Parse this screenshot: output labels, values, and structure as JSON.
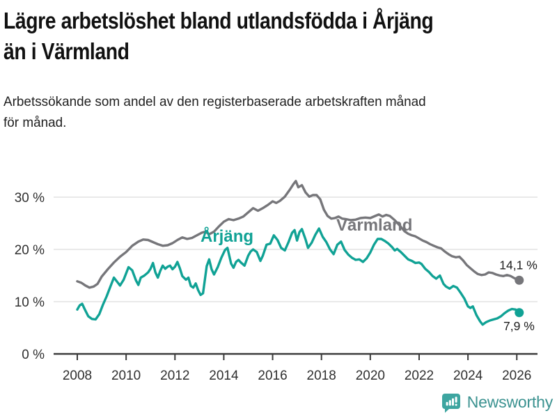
{
  "header": {
    "title": "Lägre arbetslöshet bland utlandsfödda i Årjäng än i Värmland",
    "title_lines": [
      "Lägre arbetslöshet bland utlandsfödda i Årjäng",
      "än i Värmland"
    ],
    "subtitle": "Arbetssökande som andel av den registerbaserade arbetskraften månad för månad.",
    "subtitle_lines": [
      "Arbetssökande som andel av den registerbaserade arbetskraften månad",
      "för månad."
    ]
  },
  "footer": {
    "brand": "Newsworthy",
    "brand_icon": "speech-bubble-bar-chart-icon",
    "brand_color": "#3da5a0"
  },
  "colors": {
    "background": "#ffffff",
    "title_text": "#111111",
    "axis_text": "#2f2f2f",
    "gridline": "#e2e2e2",
    "axis_line": "#3a3a3a",
    "varmland_line": "#76767a",
    "arjang_line": "#10a295"
  },
  "chart_data": {
    "type": "line",
    "title": "Lägre arbetslöshet bland utlandsfödda i Årjäng än i Värmland",
    "subtitle": "Arbetssökande som andel av den registerbaserade arbetskraften månad för månad.",
    "xlabel": "",
    "ylabel": "",
    "grid": "horizontal",
    "legend_position": "inline-labels",
    "x_axis": {
      "ticks": [
        2008,
        2010,
        2012,
        2014,
        2016,
        2018,
        2020,
        2022,
        2024,
        2026
      ],
      "tick_labels": [
        "2008",
        "2010",
        "2012",
        "2014",
        "2016",
        "2018",
        "2020",
        "2022",
        "2024",
        "2026"
      ],
      "range": [
        2007.0,
        2026.8
      ]
    },
    "y_axis": {
      "ticks": [
        0,
        10,
        20,
        30
      ],
      "tick_labels": [
        "0 %",
        "10 %",
        "20 %",
        "30 %"
      ],
      "range": [
        0,
        35
      ]
    },
    "series": [
      {
        "id": "varmland",
        "name": "Värmland",
        "color": "#76767a",
        "end_value": 14.1,
        "end_label": "14,1 %",
        "points": [
          [
            2008.0,
            13.9
          ],
          [
            2008.17,
            13.6
          ],
          [
            2008.33,
            13.1
          ],
          [
            2008.5,
            12.7
          ],
          [
            2008.67,
            12.9
          ],
          [
            2008.83,
            13.4
          ],
          [
            2009.0,
            14.8
          ],
          [
            2009.25,
            16.2
          ],
          [
            2009.5,
            17.5
          ],
          [
            2009.75,
            18.6
          ],
          [
            2010.0,
            19.5
          ],
          [
            2010.25,
            20.7
          ],
          [
            2010.5,
            21.5
          ],
          [
            2010.7,
            21.9
          ],
          [
            2010.9,
            21.8
          ],
          [
            2011.1,
            21.4
          ],
          [
            2011.3,
            21.0
          ],
          [
            2011.5,
            20.7
          ],
          [
            2011.7,
            20.8
          ],
          [
            2011.9,
            21.2
          ],
          [
            2012.1,
            21.8
          ],
          [
            2012.3,
            22.3
          ],
          [
            2012.5,
            22.0
          ],
          [
            2012.7,
            22.2
          ],
          [
            2012.9,
            22.7
          ],
          [
            2013.1,
            23.2
          ],
          [
            2013.25,
            23.4
          ],
          [
            2013.4,
            22.9
          ],
          [
            2013.6,
            23.4
          ],
          [
            2013.8,
            24.4
          ],
          [
            2014.0,
            25.3
          ],
          [
            2014.2,
            25.8
          ],
          [
            2014.4,
            25.6
          ],
          [
            2014.6,
            25.9
          ],
          [
            2014.8,
            26.3
          ],
          [
            2015.0,
            27.1
          ],
          [
            2015.2,
            27.9
          ],
          [
            2015.4,
            27.4
          ],
          [
            2015.6,
            27.9
          ],
          [
            2015.8,
            28.5
          ],
          [
            2016.0,
            29.2
          ],
          [
            2016.15,
            28.9
          ],
          [
            2016.3,
            29.3
          ],
          [
            2016.5,
            30.1
          ],
          [
            2016.7,
            31.4
          ],
          [
            2016.85,
            32.5
          ],
          [
            2016.95,
            33.1
          ],
          [
            2017.05,
            31.9
          ],
          [
            2017.2,
            32.3
          ],
          [
            2017.35,
            30.9
          ],
          [
            2017.5,
            30.1
          ],
          [
            2017.65,
            30.4
          ],
          [
            2017.8,
            30.4
          ],
          [
            2017.95,
            29.6
          ],
          [
            2018.1,
            27.6
          ],
          [
            2018.25,
            26.4
          ],
          [
            2018.4,
            25.9
          ],
          [
            2018.55,
            26.0
          ],
          [
            2018.7,
            26.3
          ],
          [
            2018.85,
            25.9
          ],
          [
            2019.0,
            25.8
          ],
          [
            2019.2,
            25.6
          ],
          [
            2019.4,
            25.7
          ],
          [
            2019.6,
            26.0
          ],
          [
            2019.8,
            26.1
          ],
          [
            2020.0,
            26.0
          ],
          [
            2020.2,
            26.4
          ],
          [
            2020.35,
            26.7
          ],
          [
            2020.5,
            26.3
          ],
          [
            2020.65,
            26.6
          ],
          [
            2020.8,
            26.4
          ],
          [
            2021.0,
            25.6
          ],
          [
            2021.2,
            24.6
          ],
          [
            2021.4,
            23.5
          ],
          [
            2021.55,
            23.0
          ],
          [
            2021.7,
            22.7
          ],
          [
            2021.85,
            22.5
          ],
          [
            2022.0,
            22.1
          ],
          [
            2022.15,
            21.7
          ],
          [
            2022.3,
            21.4
          ],
          [
            2022.45,
            21.0
          ],
          [
            2022.6,
            20.7
          ],
          [
            2022.75,
            20.4
          ],
          [
            2022.9,
            20.2
          ],
          [
            2023.05,
            19.6
          ],
          [
            2023.2,
            19.1
          ],
          [
            2023.35,
            18.7
          ],
          [
            2023.5,
            18.5
          ],
          [
            2023.65,
            18.6
          ],
          [
            2023.8,
            17.9
          ],
          [
            2023.95,
            17.0
          ],
          [
            2024.1,
            16.4
          ],
          [
            2024.25,
            15.8
          ],
          [
            2024.4,
            15.3
          ],
          [
            2024.55,
            15.1
          ],
          [
            2024.7,
            15.2
          ],
          [
            2024.85,
            15.6
          ],
          [
            2025.0,
            15.5
          ],
          [
            2025.15,
            15.2
          ],
          [
            2025.3,
            15.0
          ],
          [
            2025.45,
            14.9
          ],
          [
            2025.6,
            15.1
          ],
          [
            2025.75,
            14.9
          ],
          [
            2025.9,
            14.5
          ],
          [
            2026.1,
            14.1
          ]
        ]
      },
      {
        "id": "arjang",
        "name": "Årjäng",
        "color": "#10a295",
        "end_value": 7.9,
        "end_label": "7,9 %",
        "points": [
          [
            2008.0,
            8.5
          ],
          [
            2008.1,
            9.3
          ],
          [
            2008.2,
            9.6
          ],
          [
            2008.3,
            8.6
          ],
          [
            2008.45,
            7.2
          ],
          [
            2008.6,
            6.7
          ],
          [
            2008.75,
            6.6
          ],
          [
            2008.9,
            7.6
          ],
          [
            2009.05,
            9.4
          ],
          [
            2009.2,
            11.0
          ],
          [
            2009.35,
            12.8
          ],
          [
            2009.5,
            14.6
          ],
          [
            2009.6,
            14.0
          ],
          [
            2009.75,
            13.1
          ],
          [
            2009.9,
            14.2
          ],
          [
            2010.0,
            15.4
          ],
          [
            2010.1,
            16.6
          ],
          [
            2010.25,
            16.0
          ],
          [
            2010.4,
            14.1
          ],
          [
            2010.5,
            13.2
          ],
          [
            2010.6,
            14.6
          ],
          [
            2010.75,
            15.0
          ],
          [
            2010.9,
            15.6
          ],
          [
            2011.0,
            16.3
          ],
          [
            2011.1,
            17.4
          ],
          [
            2011.2,
            15.6
          ],
          [
            2011.3,
            14.6
          ],
          [
            2011.4,
            15.9
          ],
          [
            2011.5,
            16.9
          ],
          [
            2011.6,
            16.3
          ],
          [
            2011.7,
            16.7
          ],
          [
            2011.8,
            16.9
          ],
          [
            2011.9,
            16.2
          ],
          [
            2012.0,
            16.7
          ],
          [
            2012.1,
            17.6
          ],
          [
            2012.2,
            16.4
          ],
          [
            2012.3,
            14.9
          ],
          [
            2012.45,
            14.2
          ],
          [
            2012.55,
            14.6
          ],
          [
            2012.65,
            13.0
          ],
          [
            2012.75,
            12.7
          ],
          [
            2012.85,
            13.5
          ],
          [
            2012.95,
            12.2
          ],
          [
            2013.05,
            11.3
          ],
          [
            2013.15,
            11.6
          ],
          [
            2013.3,
            16.8
          ],
          [
            2013.4,
            18.1
          ],
          [
            2013.5,
            16.2
          ],
          [
            2013.6,
            15.2
          ],
          [
            2013.75,
            16.6
          ],
          [
            2013.9,
            18.4
          ],
          [
            2014.05,
            19.9
          ],
          [
            2014.15,
            20.3
          ],
          [
            2014.3,
            17.3
          ],
          [
            2014.4,
            16.5
          ],
          [
            2014.5,
            17.6
          ],
          [
            2014.6,
            18.0
          ],
          [
            2014.7,
            17.5
          ],
          [
            2014.85,
            16.9
          ],
          [
            2015.0,
            18.8
          ],
          [
            2015.1,
            19.6
          ],
          [
            2015.2,
            20.0
          ],
          [
            2015.35,
            19.5
          ],
          [
            2015.5,
            17.8
          ],
          [
            2015.6,
            18.8
          ],
          [
            2015.75,
            20.9
          ],
          [
            2015.9,
            21.1
          ],
          [
            2016.05,
            22.7
          ],
          [
            2016.2,
            21.8
          ],
          [
            2016.35,
            20.3
          ],
          [
            2016.5,
            19.8
          ],
          [
            2016.65,
            21.4
          ],
          [
            2016.8,
            23.2
          ],
          [
            2016.9,
            23.7
          ],
          [
            2017.0,
            21.7
          ],
          [
            2017.1,
            23.3
          ],
          [
            2017.2,
            23.9
          ],
          [
            2017.35,
            21.9
          ],
          [
            2017.45,
            20.3
          ],
          [
            2017.6,
            21.3
          ],
          [
            2017.75,
            22.8
          ],
          [
            2017.9,
            24.0
          ],
          [
            2018.05,
            22.4
          ],
          [
            2018.2,
            21.4
          ],
          [
            2018.35,
            20.0
          ],
          [
            2018.5,
            19.1
          ],
          [
            2018.65,
            20.9
          ],
          [
            2018.8,
            21.5
          ],
          [
            2018.95,
            19.9
          ],
          [
            2019.1,
            19.0
          ],
          [
            2019.25,
            18.4
          ],
          [
            2019.4,
            18.0
          ],
          [
            2019.55,
            18.1
          ],
          [
            2019.7,
            17.6
          ],
          [
            2019.85,
            18.3
          ],
          [
            2020.0,
            19.4
          ],
          [
            2020.15,
            20.9
          ],
          [
            2020.3,
            22.0
          ],
          [
            2020.45,
            22.0
          ],
          [
            2020.6,
            21.6
          ],
          [
            2020.75,
            21.1
          ],
          [
            2020.9,
            20.4
          ],
          [
            2021.0,
            19.8
          ],
          [
            2021.1,
            20.1
          ],
          [
            2021.25,
            19.5
          ],
          [
            2021.4,
            18.8
          ],
          [
            2021.55,
            18.1
          ],
          [
            2021.7,
            17.8
          ],
          [
            2021.85,
            17.4
          ],
          [
            2022.0,
            17.5
          ],
          [
            2022.1,
            17.2
          ],
          [
            2022.25,
            16.3
          ],
          [
            2022.4,
            15.7
          ],
          [
            2022.55,
            14.9
          ],
          [
            2022.7,
            14.4
          ],
          [
            2022.85,
            15.0
          ],
          [
            2023.0,
            13.4
          ],
          [
            2023.1,
            12.9
          ],
          [
            2023.25,
            12.5
          ],
          [
            2023.4,
            13.0
          ],
          [
            2023.55,
            12.7
          ],
          [
            2023.7,
            11.7
          ],
          [
            2023.85,
            10.6
          ],
          [
            2024.0,
            9.1
          ],
          [
            2024.1,
            8.8
          ],
          [
            2024.2,
            9.1
          ],
          [
            2024.35,
            7.4
          ],
          [
            2024.5,
            6.2
          ],
          [
            2024.6,
            5.6
          ],
          [
            2024.75,
            6.1
          ],
          [
            2024.9,
            6.4
          ],
          [
            2025.05,
            6.6
          ],
          [
            2025.2,
            6.8
          ],
          [
            2025.35,
            7.2
          ],
          [
            2025.5,
            7.8
          ],
          [
            2025.65,
            8.3
          ],
          [
            2025.8,
            8.6
          ],
          [
            2025.95,
            8.5
          ],
          [
            2026.1,
            7.9
          ]
        ]
      }
    ]
  }
}
